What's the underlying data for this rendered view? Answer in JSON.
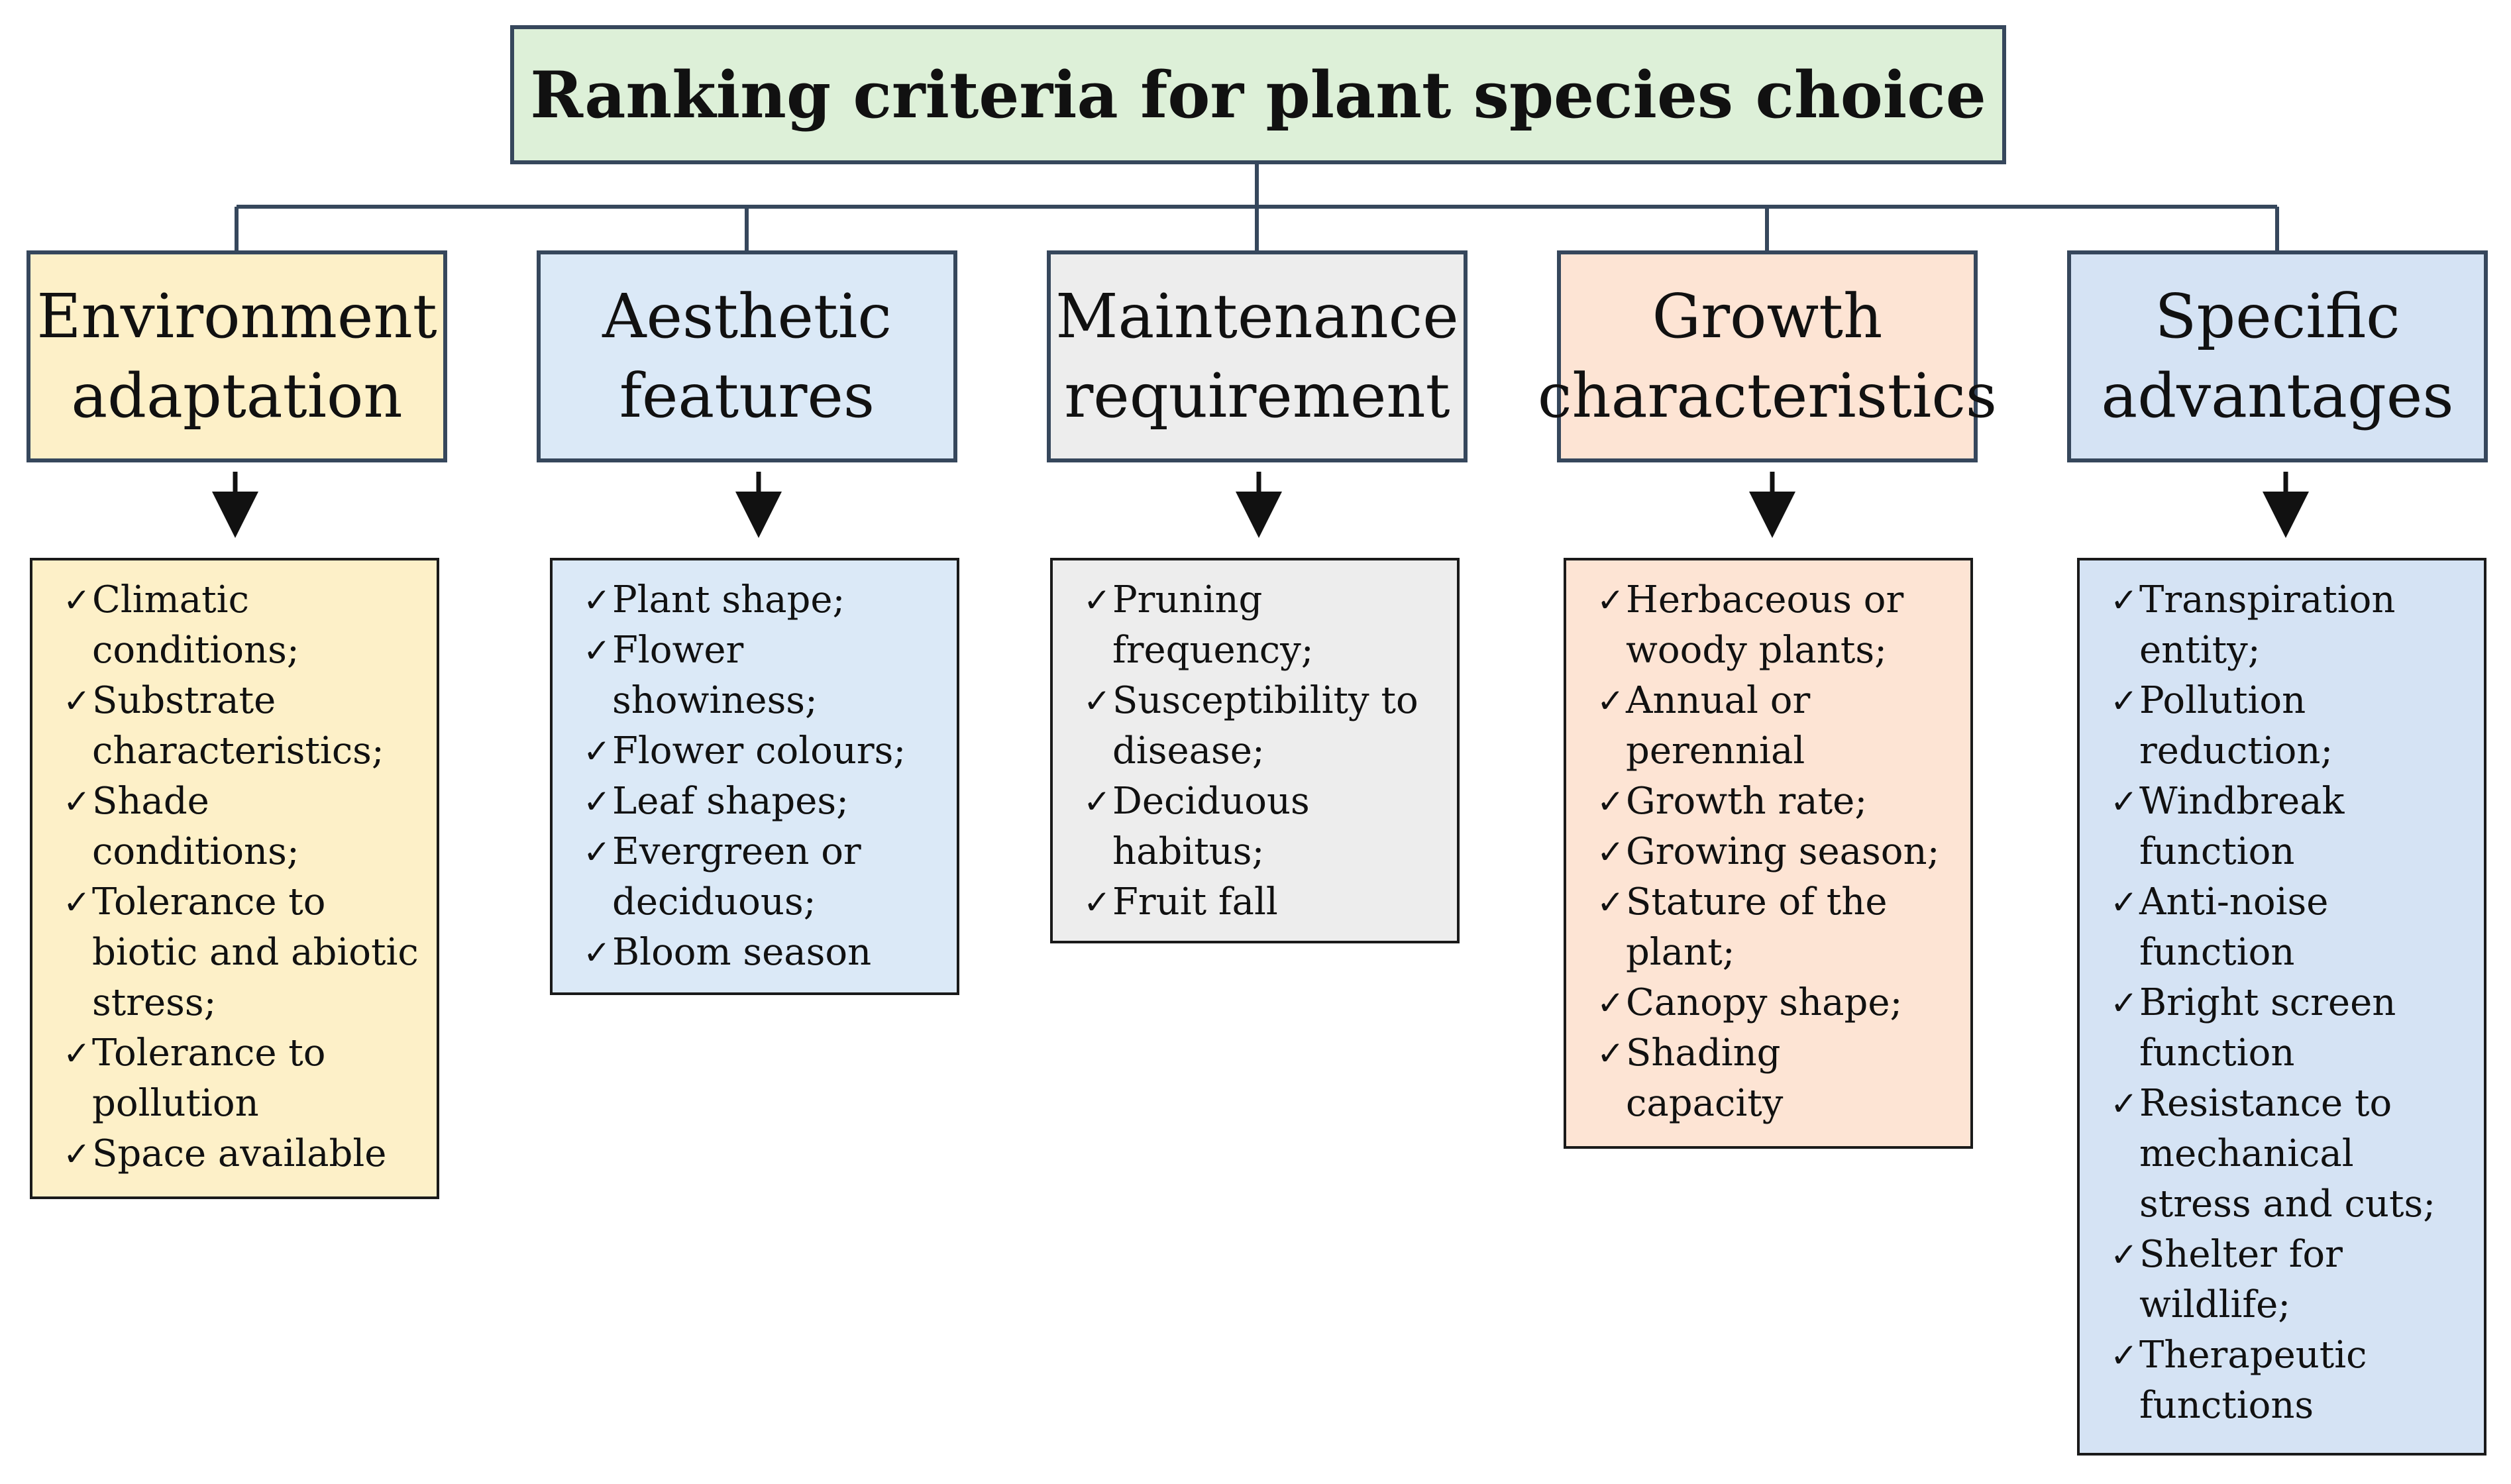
{
  "title": "Ranking criteria for plant species choice",
  "colors": {
    "title_fill": "#ddf0d8",
    "border": "#36475c",
    "environment_fill": "#fdf0c8",
    "aesthetic_fill": "#dbe9f7",
    "maintenance_fill": "#ededed",
    "growth_fill": "#fde4d4",
    "specific_fill": "#d5e3f4"
  },
  "check_glyph": "✓",
  "categories": [
    {
      "label_lines": [
        "Environment",
        "adaptation"
      ],
      "items": [
        {
          "lines": [
            "Climatic",
            "conditions;"
          ]
        },
        {
          "lines": [
            "Substrate",
            "characteristics;"
          ]
        },
        {
          "lines": [
            "Shade",
            "conditions;"
          ]
        },
        {
          "lines": [
            "Tolerance to",
            "biotic and abiotic",
            "stress;"
          ]
        },
        {
          "lines": [
            "Tolerance to",
            "pollution"
          ]
        },
        {
          "lines": [
            "Space available"
          ]
        }
      ]
    },
    {
      "label_lines": [
        "Aesthetic",
        "features"
      ],
      "items": [
        {
          "lines": [
            "Plant shape;"
          ]
        },
        {
          "lines": [
            "Flower",
            "showiness;"
          ]
        },
        {
          "lines": [
            "Flower colours;"
          ]
        },
        {
          "lines": [
            "Leaf shapes;"
          ]
        },
        {
          "lines": [
            "Evergreen or",
            "deciduous;"
          ]
        },
        {
          "lines": [
            "Bloom season"
          ]
        }
      ]
    },
    {
      "label_lines": [
        "Maintenance",
        "requirement"
      ],
      "items": [
        {
          "lines": [
            "Pruning",
            "frequency;"
          ]
        },
        {
          "lines": [
            "Susceptibility to",
            "disease;"
          ]
        },
        {
          "lines": [
            "Deciduous",
            "habitus;"
          ]
        },
        {
          "lines": [
            "Fruit fall"
          ]
        }
      ]
    },
    {
      "label_lines": [
        "Growth",
        "characteristics"
      ],
      "items": [
        {
          "lines": [
            "Herbaceous or",
            "woody plants;"
          ]
        },
        {
          "lines": [
            "Annual or",
            "perennial"
          ]
        },
        {
          "lines": [
            "Growth rate;"
          ]
        },
        {
          "lines": [
            "Growing season;"
          ]
        },
        {
          "lines": [
            "Stature of the",
            "plant;"
          ]
        },
        {
          "lines": [
            "Canopy shape;"
          ]
        },
        {
          "lines": [
            "Shading",
            "capacity"
          ]
        }
      ]
    },
    {
      "label_lines": [
        "Specific",
        "advantages"
      ],
      "items": [
        {
          "lines": [
            "Transpiration",
            "entity;"
          ]
        },
        {
          "lines": [
            "Pollution",
            "reduction;"
          ]
        },
        {
          "lines": [
            "Windbreak",
            "function"
          ]
        },
        {
          "lines": [
            "Anti-noise",
            "function"
          ]
        },
        {
          "lines": [
            "Bright screen",
            "function"
          ]
        },
        {
          "lines": [
            "Resistance to",
            "mechanical",
            "stress and cuts;"
          ]
        },
        {
          "lines": [
            "Shelter for",
            "wildlife;"
          ]
        },
        {
          "lines": [
            "Therapeutic",
            "functions"
          ]
        }
      ]
    }
  ]
}
